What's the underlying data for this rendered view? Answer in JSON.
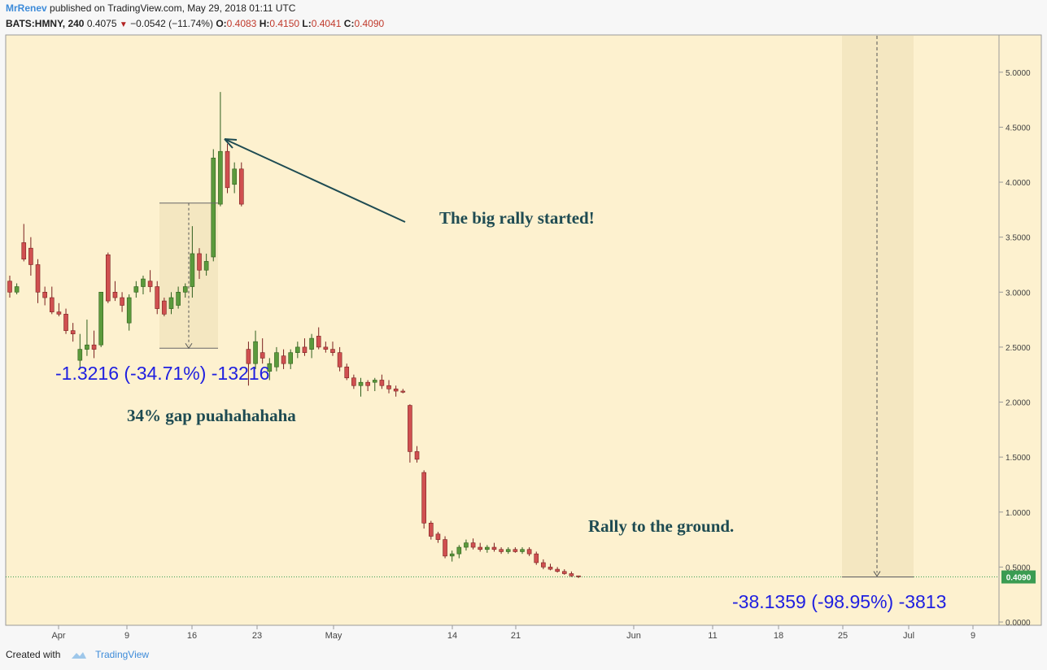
{
  "header": {
    "author": "MrRenev",
    "published_text": "published on TradingView.com, May 29, 2018 01:11 UTC",
    "symbol": "BATS:HMNY, 240",
    "last": "0.4075",
    "change": "−0.0542 (−11.74%)",
    "open_label": "O:",
    "open": "0.4083",
    "high_label": "H:",
    "high": "0.4150",
    "low_label": "L:",
    "low": "0.4041",
    "close_label": "C:",
    "close": "0.4090"
  },
  "footer": {
    "created_with": "Created with",
    "brand": "TradingView"
  },
  "colors": {
    "background": "#fdf1cf",
    "up": "#5b9a3c",
    "down": "#d05050",
    "annotation_text": "#1e4b52",
    "measure_text": "#2020e0",
    "price_line": "#3a9c52",
    "price_badge": "#3a9c52"
  },
  "chart_data": {
    "type": "candlestick",
    "symbol": "BATS:HMNY",
    "interval": "240",
    "y_axis": {
      "min": 0.0,
      "max": 5.25,
      "ticks": [
        "5.0000",
        "4.5000",
        "4.0000",
        "3.5000",
        "3.0000",
        "2.5000",
        "2.0000",
        "1.5000",
        "1.0000",
        "0.5000",
        "0.0000"
      ],
      "position": "right"
    },
    "x_axis": {
      "ticks": [
        "Apr",
        "9",
        "16",
        "23",
        "May",
        "14",
        "21",
        "Jun",
        "11",
        "18",
        "25",
        "Jul",
        "9"
      ]
    },
    "last_price_label": "0.4090",
    "candles": [
      {
        "o": 3.1,
        "h": 3.15,
        "l": 2.95,
        "c": 3.0
      },
      {
        "o": 3.0,
        "h": 3.08,
        "l": 2.98,
        "c": 3.05
      },
      {
        "o": 3.45,
        "h": 3.62,
        "l": 3.28,
        "c": 3.3
      },
      {
        "o": 3.4,
        "h": 3.5,
        "l": 3.15,
        "c": 3.25
      },
      {
        "o": 3.25,
        "h": 3.3,
        "l": 2.9,
        "c": 3.0
      },
      {
        "o": 3.0,
        "h": 3.05,
        "l": 2.88,
        "c": 2.95
      },
      {
        "o": 2.95,
        "h": 3.05,
        "l": 2.8,
        "c": 2.82
      },
      {
        "o": 2.82,
        "h": 2.9,
        "l": 2.78,
        "c": 2.8
      },
      {
        "o": 2.8,
        "h": 2.85,
        "l": 2.62,
        "c": 2.65
      },
      {
        "o": 2.65,
        "h": 2.72,
        "l": 2.55,
        "c": 2.62
      },
      {
        "o": 2.38,
        "h": 2.62,
        "l": 2.3,
        "c": 2.48
      },
      {
        "o": 2.48,
        "h": 2.75,
        "l": 2.42,
        "c": 2.52
      },
      {
        "o": 2.52,
        "h": 2.65,
        "l": 2.4,
        "c": 2.48
      },
      {
        "o": 2.52,
        "h": 3.0,
        "l": 2.5,
        "c": 3.0
      },
      {
        "o": 3.34,
        "h": 3.36,
        "l": 2.9,
        "c": 2.92
      },
      {
        "o": 3.0,
        "h": 3.1,
        "l": 2.92,
        "c": 2.95
      },
      {
        "o": 2.95,
        "h": 3.0,
        "l": 2.82,
        "c": 2.88
      },
      {
        "o": 2.72,
        "h": 2.98,
        "l": 2.65,
        "c": 2.95
      },
      {
        "o": 3.0,
        "h": 3.1,
        "l": 2.95,
        "c": 3.05
      },
      {
        "o": 3.05,
        "h": 3.15,
        "l": 2.98,
        "c": 3.12
      },
      {
        "o": 3.1,
        "h": 3.2,
        "l": 3.0,
        "c": 3.05
      },
      {
        "o": 3.05,
        "h": 3.1,
        "l": 2.8,
        "c": 2.85
      },
      {
        "o": 2.92,
        "h": 2.95,
        "l": 2.78,
        "c": 2.8
      },
      {
        "o": 2.85,
        "h": 3.0,
        "l": 2.8,
        "c": 2.95
      },
      {
        "o": 2.88,
        "h": 3.05,
        "l": 2.85,
        "c": 3.0
      },
      {
        "o": 3.0,
        "h": 3.08,
        "l": 2.95,
        "c": 3.05
      },
      {
        "o": 3.05,
        "h": 3.6,
        "l": 2.95,
        "c": 3.35
      },
      {
        "o": 3.35,
        "h": 3.4,
        "l": 3.12,
        "c": 3.2
      },
      {
        "o": 3.2,
        "h": 3.35,
        "l": 3.15,
        "c": 3.28
      },
      {
        "o": 3.32,
        "h": 4.3,
        "l": 3.28,
        "c": 4.22
      },
      {
        "o": 3.8,
        "h": 4.82,
        "l": 3.78,
        "c": 4.28
      },
      {
        "o": 4.28,
        "h": 4.35,
        "l": 3.9,
        "c": 3.95
      },
      {
        "o": 3.98,
        "h": 4.18,
        "l": 3.9,
        "c": 4.12
      },
      {
        "o": 4.12,
        "h": 4.18,
        "l": 3.78,
        "c": 3.8
      },
      {
        "o": 2.48,
        "h": 2.55,
        "l": 2.15,
        "c": 2.35
      },
      {
        "o": 2.35,
        "h": 2.65,
        "l": 2.3,
        "c": 2.55
      },
      {
        "o": 2.45,
        "h": 2.58,
        "l": 2.35,
        "c": 2.4
      },
      {
        "o": 2.28,
        "h": 2.4,
        "l": 2.2,
        "c": 2.35
      },
      {
        "o": 2.32,
        "h": 2.5,
        "l": 2.28,
        "c": 2.45
      },
      {
        "o": 2.42,
        "h": 2.48,
        "l": 2.3,
        "c": 2.35
      },
      {
        "o": 2.35,
        "h": 2.48,
        "l": 2.3,
        "c": 2.45
      },
      {
        "o": 2.45,
        "h": 2.55,
        "l": 2.4,
        "c": 2.5
      },
      {
        "o": 2.5,
        "h": 2.58,
        "l": 2.42,
        "c": 2.45
      },
      {
        "o": 2.48,
        "h": 2.62,
        "l": 2.4,
        "c": 2.58
      },
      {
        "o": 2.6,
        "h": 2.68,
        "l": 2.48,
        "c": 2.5
      },
      {
        "o": 2.5,
        "h": 2.55,
        "l": 2.45,
        "c": 2.48
      },
      {
        "o": 2.48,
        "h": 2.55,
        "l": 2.42,
        "c": 2.45
      },
      {
        "o": 2.45,
        "h": 2.5,
        "l": 2.28,
        "c": 2.32
      },
      {
        "o": 2.32,
        "h": 2.35,
        "l": 2.2,
        "c": 2.22
      },
      {
        "o": 2.22,
        "h": 2.25,
        "l": 2.12,
        "c": 2.15
      },
      {
        "o": 2.15,
        "h": 2.22,
        "l": 2.05,
        "c": 2.18
      },
      {
        "o": 2.18,
        "h": 2.2,
        "l": 2.1,
        "c": 2.15
      },
      {
        "o": 2.18,
        "h": 2.22,
        "l": 2.1,
        "c": 2.2
      },
      {
        "o": 2.2,
        "h": 2.25,
        "l": 2.12,
        "c": 2.15
      },
      {
        "o": 2.15,
        "h": 2.2,
        "l": 2.08,
        "c": 2.12
      },
      {
        "o": 2.12,
        "h": 2.15,
        "l": 2.05,
        "c": 2.1
      },
      {
        "o": 2.1,
        "h": 2.12,
        "l": 2.08,
        "c": 2.09
      },
      {
        "o": 1.97,
        "h": 1.98,
        "l": 1.45,
        "c": 1.55
      },
      {
        "o": 1.55,
        "h": 1.6,
        "l": 1.45,
        "c": 1.48
      },
      {
        "o": 1.36,
        "h": 1.38,
        "l": 0.85,
        "c": 0.9
      },
      {
        "o": 0.9,
        "h": 0.92,
        "l": 0.75,
        "c": 0.78
      },
      {
        "o": 0.8,
        "h": 0.82,
        "l": 0.72,
        "c": 0.75
      },
      {
        "o": 0.75,
        "h": 0.78,
        "l": 0.58,
        "c": 0.6
      },
      {
        "o": 0.6,
        "h": 0.65,
        "l": 0.55,
        "c": 0.62
      },
      {
        "o": 0.62,
        "h": 0.7,
        "l": 0.58,
        "c": 0.68
      },
      {
        "o": 0.68,
        "h": 0.75,
        "l": 0.65,
        "c": 0.72
      },
      {
        "o": 0.72,
        "h": 0.76,
        "l": 0.66,
        "c": 0.68
      },
      {
        "o": 0.68,
        "h": 0.72,
        "l": 0.64,
        "c": 0.66
      },
      {
        "o": 0.66,
        "h": 0.7,
        "l": 0.63,
        "c": 0.68
      },
      {
        "o": 0.68,
        "h": 0.72,
        "l": 0.64,
        "c": 0.66
      },
      {
        "o": 0.66,
        "h": 0.68,
        "l": 0.62,
        "c": 0.64
      },
      {
        "o": 0.64,
        "h": 0.68,
        "l": 0.62,
        "c": 0.66
      },
      {
        "o": 0.66,
        "h": 0.68,
        "l": 0.63,
        "c": 0.64
      },
      {
        "o": 0.64,
        "h": 0.68,
        "l": 0.62,
        "c": 0.66
      },
      {
        "o": 0.66,
        "h": 0.68,
        "l": 0.6,
        "c": 0.62
      },
      {
        "o": 0.62,
        "h": 0.64,
        "l": 0.52,
        "c": 0.54
      },
      {
        "o": 0.54,
        "h": 0.57,
        "l": 0.48,
        "c": 0.5
      },
      {
        "o": 0.5,
        "h": 0.53,
        "l": 0.47,
        "c": 0.48
      },
      {
        "o": 0.48,
        "h": 0.5,
        "l": 0.45,
        "c": 0.46
      },
      {
        "o": 0.46,
        "h": 0.48,
        "l": 0.43,
        "c": 0.44
      },
      {
        "o": 0.44,
        "h": 0.46,
        "l": 0.41,
        "c": 0.42
      },
      {
        "o": 0.42,
        "h": 0.42,
        "l": 0.4,
        "c": 0.41
      }
    ],
    "annotations": [
      {
        "name": "rally-annotation",
        "text": "The big rally started!"
      },
      {
        "name": "gap-annotation",
        "text": "34% gap puahahahaha"
      },
      {
        "name": "ground-annotation",
        "text": "Rally to the ground."
      },
      {
        "name": "gap-measure-label",
        "text": "-1.3216 (-34.71%) -13216"
      },
      {
        "name": "drop-measure-label",
        "text": "-38.1359 (-98.95%) -3813"
      }
    ],
    "measures": [
      {
        "name": "gap-measure",
        "from": 3.81,
        "to": 2.49
      },
      {
        "name": "drop-measure",
        "from": 5.25,
        "to": 0.41
      }
    ]
  }
}
